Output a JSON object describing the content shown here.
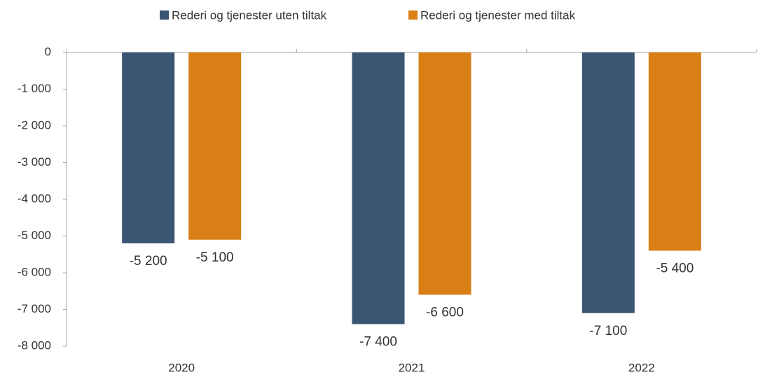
{
  "chart_data": {
    "type": "bar",
    "categories": [
      "2020",
      "2021",
      "2022"
    ],
    "series": [
      {
        "name": "Rederi og tjenester uten tiltak",
        "color": "#3a5673",
        "values": [
          -5200,
          -7400,
          -7100
        ],
        "value_labels": [
          "-5 200",
          "-7 400",
          "-7 100"
        ]
      },
      {
        "name": "Rederi og tjenester med tiltak",
        "color": "#d97f16",
        "values": [
          -5100,
          -6600,
          -5400
        ],
        "value_labels": [
          "-5 100",
          "-6 600",
          "-5 400"
        ]
      }
    ],
    "ylim": [
      -8000,
      0
    ],
    "yticks": [
      0,
      {
        "value": -1000,
        "label": "-1 000"
      },
      {
        "value": -2000,
        "label": "-2 000"
      },
      {
        "value": -3000,
        "label": "-3 000"
      },
      {
        "value": -4000,
        "label": "-4 000"
      },
      {
        "value": -5000,
        "label": "-5 000"
      },
      {
        "value": -6000,
        "label": "-6 000"
      },
      {
        "value": -7000,
        "label": "-7 000"
      },
      {
        "value": -8000,
        "label": "-8 000"
      }
    ],
    "legend": "top"
  }
}
